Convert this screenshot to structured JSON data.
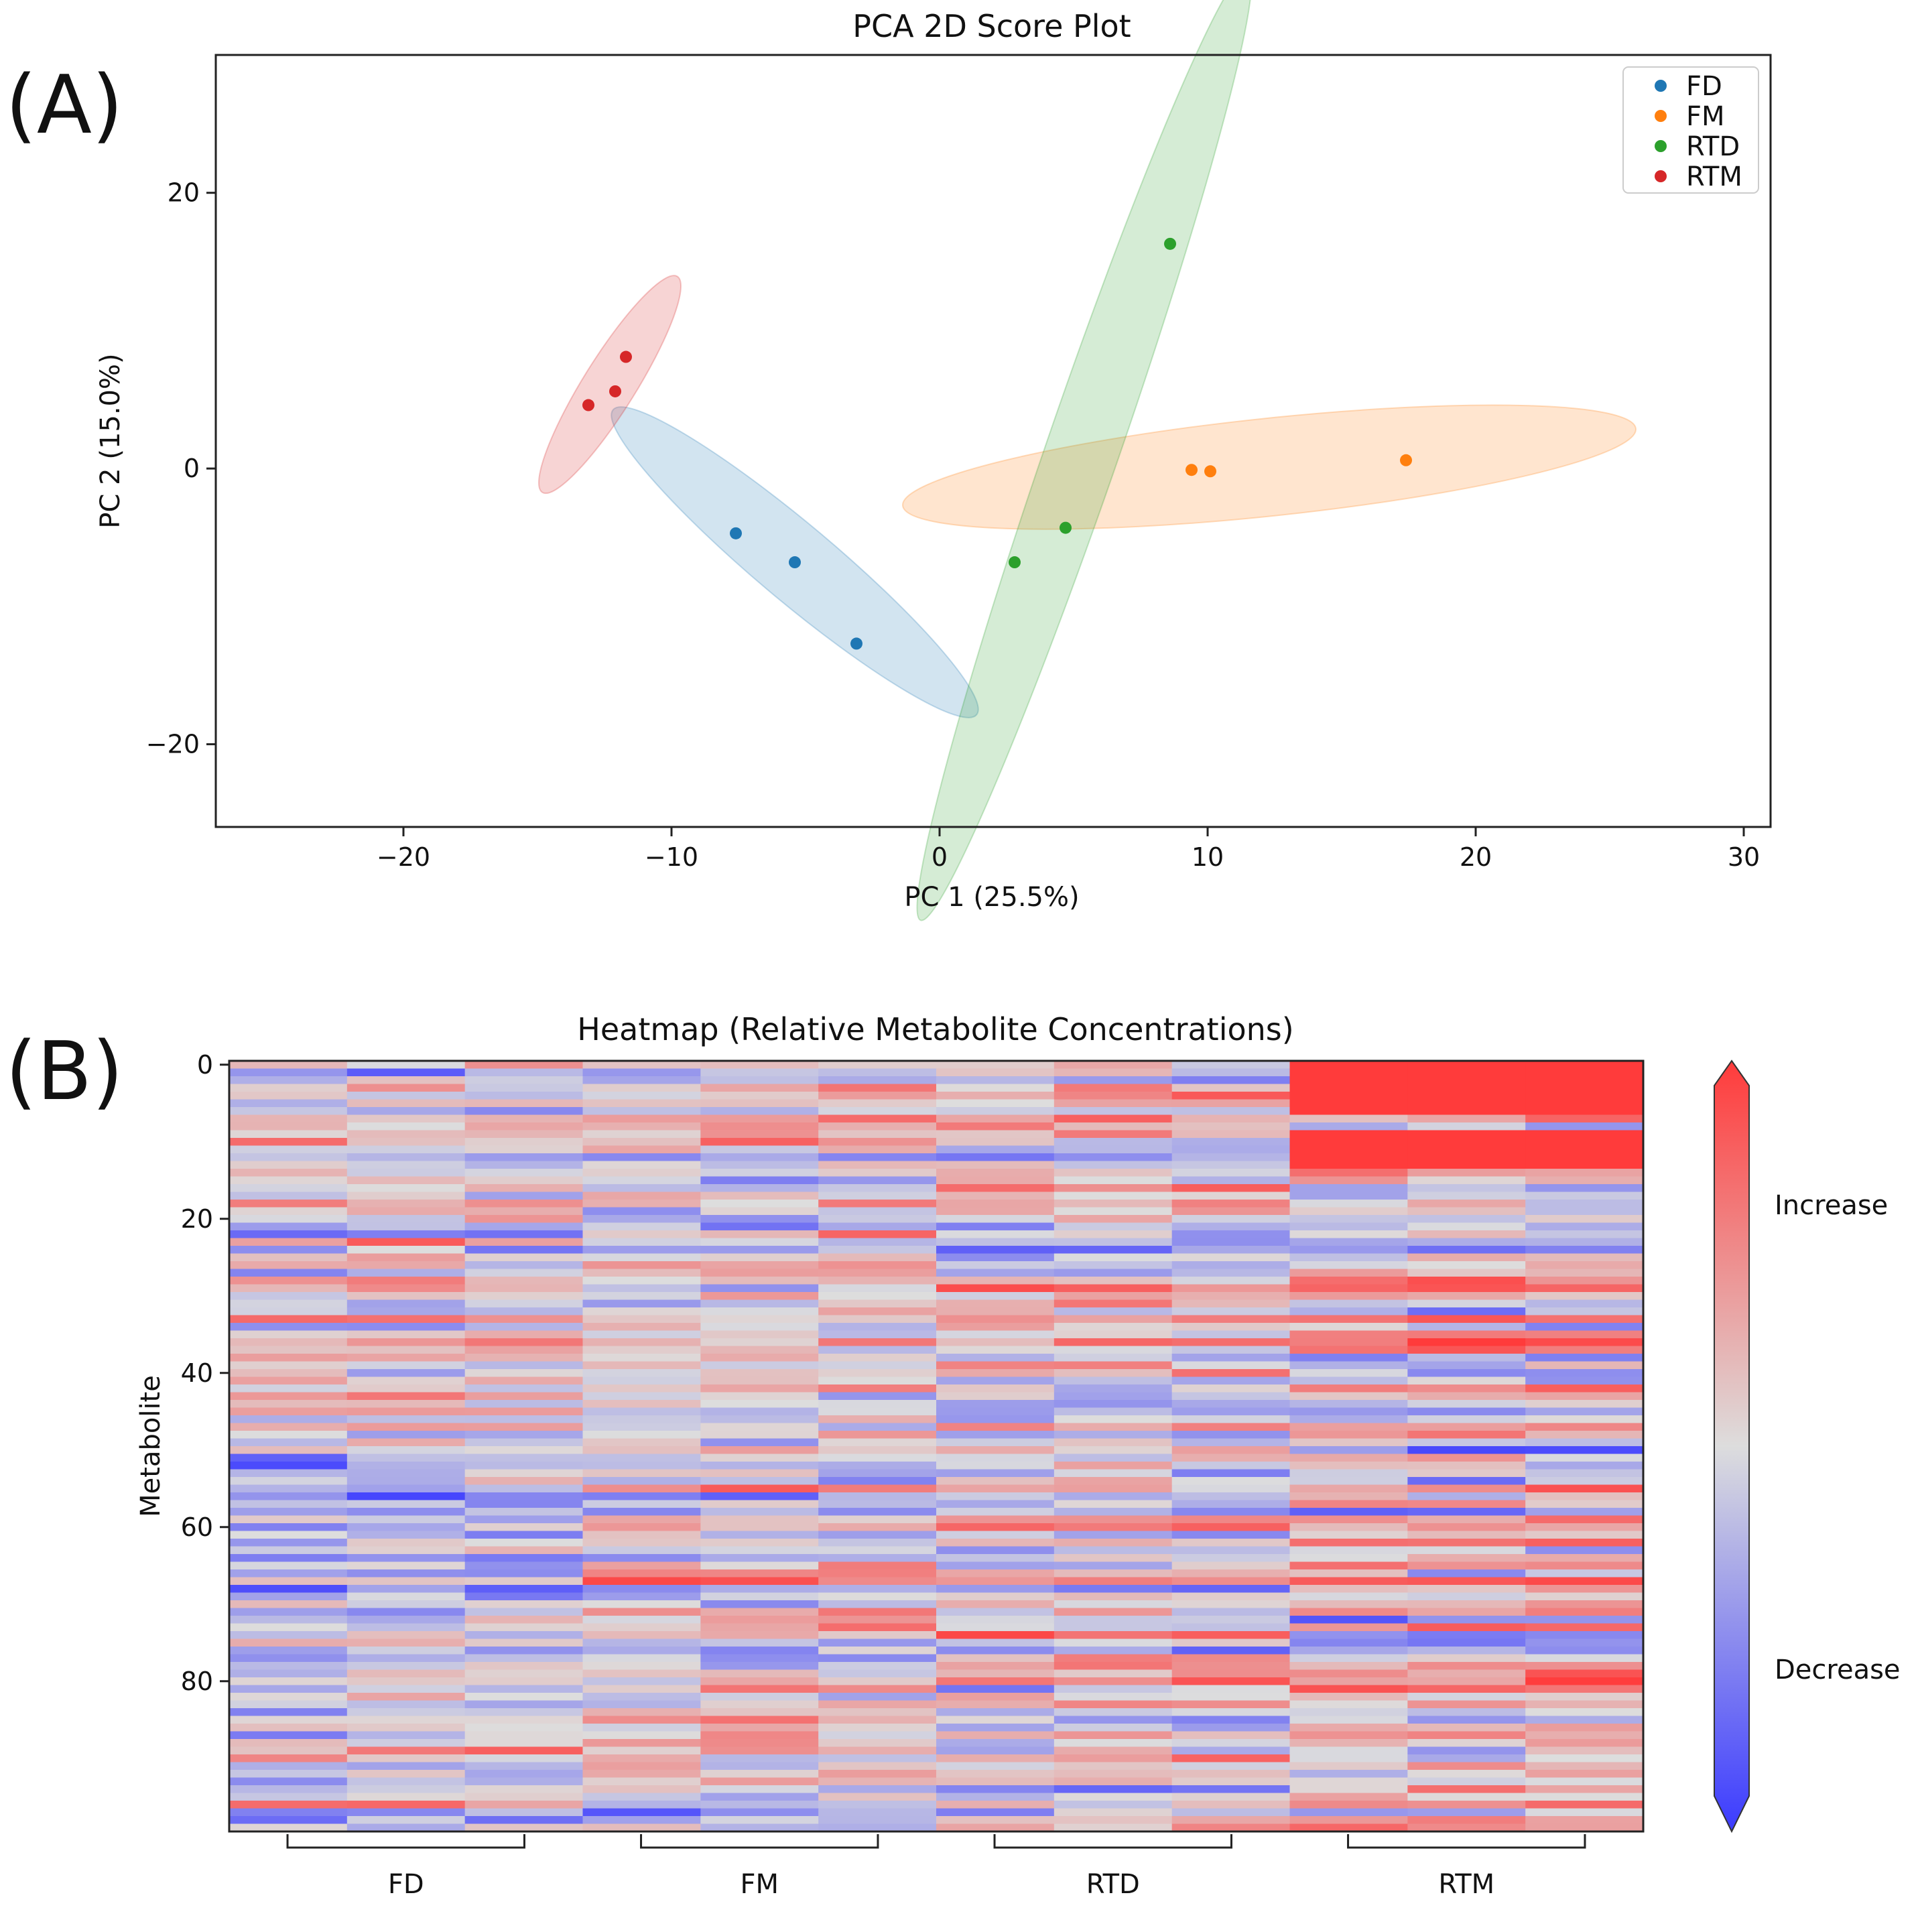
{
  "panel_labels": {
    "a": "(A)",
    "b": "(B)"
  },
  "colors": {
    "FD": "#1f77b4",
    "FM": "#ff7f0e",
    "RTD": "#2ca02c",
    "RTM": "#d62728",
    "cmap_low": "#3b3bff",
    "cmap_mid": "#dddddd",
    "cmap_high": "#ff3b3b"
  },
  "chart_data": [
    {
      "type": "scatter",
      "title": "PCA 2D Score Plot",
      "xlabel": "PC 1 (25.5%)",
      "ylabel": "PC 2 (15.0%)",
      "xlim": [
        -27,
        31
      ],
      "ylim": [
        -26,
        30
      ],
      "xticks": [
        -20,
        -10,
        0,
        10,
        20,
        30
      ],
      "xtick_labels": [
        "−20",
        "−10",
        "0",
        "10",
        "20",
        "30"
      ],
      "yticks": [
        20,
        0,
        -20
      ],
      "ytick_labels": [
        "20",
        "0",
        "−20"
      ],
      "legend_position": "top-right",
      "series": [
        {
          "name": "FD",
          "points": [
            [
              -7.6,
              -4.7
            ],
            [
              -5.4,
              -6.8
            ],
            [
              -3.1,
              -12.7
            ]
          ],
          "ellipse": {
            "center": [
              -5.4,
              -6.8
            ],
            "width_deg": 17.7,
            "height_deg": 5.6,
            "angle": -40
          }
        },
        {
          "name": "FM",
          "points": [
            [
              9.4,
              -0.1
            ],
            [
              10.1,
              -0.2
            ],
            [
              17.4,
              0.6
            ]
          ],
          "ellipse": {
            "center": [
              12.3,
              0.1
            ],
            "width_deg": 27.5,
            "height_deg": 7.1,
            "angle": 6
          }
        },
        {
          "name": "RTD",
          "points": [
            [
              2.8,
              -6.8
            ],
            [
              4.7,
              -4.3
            ],
            [
              8.6,
              16.3
            ]
          ],
          "ellipse": {
            "center": [
              5.4,
              1.7
            ],
            "width_deg": 37.5,
            "height_deg": 5.3,
            "angle": 71
          }
        },
        {
          "name": "RTM",
          "points": [
            [
              -13.1,
              4.6
            ],
            [
              -12.1,
              5.6
            ],
            [
              -11.7,
              8.1
            ]
          ],
          "ellipse": {
            "center": [
              -12.3,
              6.1
            ],
            "width_deg": 9.5,
            "height_deg": 3.8,
            "angle": 58
          }
        }
      ]
    },
    {
      "type": "heatmap",
      "title": "Heatmap (Relative Metabolite Concentrations)",
      "ylabel": "Metabolite",
      "rows": 100,
      "columns": 12,
      "yticks": [
        0,
        20,
        40,
        60,
        80
      ],
      "groups": [
        "FD",
        "FM",
        "RTD",
        "RTM"
      ],
      "samples_per_group": 3,
      "colorbar_labels": {
        "high": "Increase",
        "low": "Decrease"
      }
    }
  ]
}
